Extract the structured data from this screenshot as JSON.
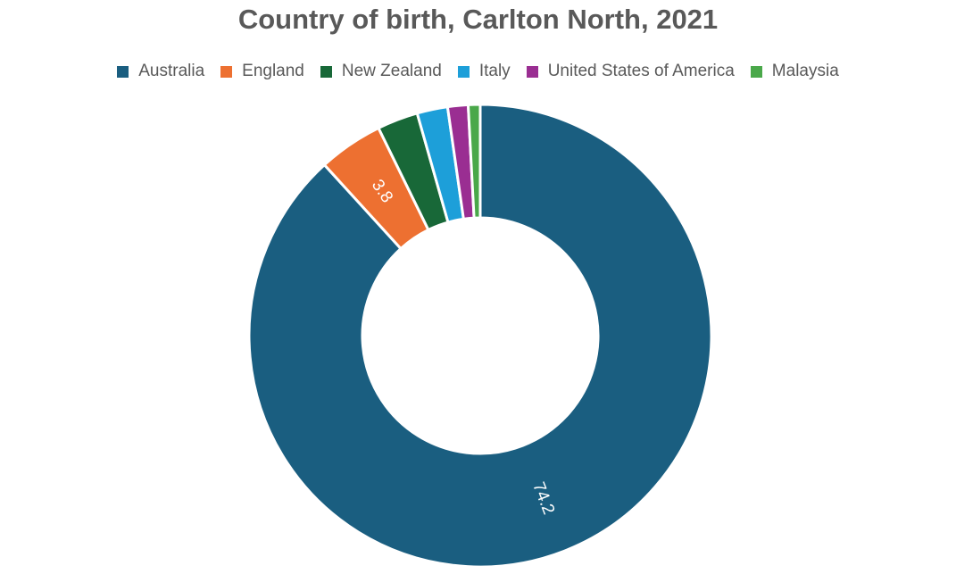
{
  "chart_data": {
    "type": "pie",
    "subtype": "donut",
    "title": "Country of birth, Carlton North, 2021",
    "legend_position": "top",
    "series": [
      {
        "name": "Australia",
        "value": 74.2,
        "label": "74.2",
        "color": "#1a5e80"
      },
      {
        "name": "England",
        "value": 3.8,
        "label": "3.8",
        "color": "#ed7031"
      },
      {
        "name": "New Zealand",
        "value": 2.4,
        "label": "",
        "color": "#186838"
      },
      {
        "name": "Italy",
        "value": 1.8,
        "label": "",
        "color": "#1d9fd9"
      },
      {
        "name": "United States of America",
        "value": 1.2,
        "label": "",
        "color": "#9a2e92"
      },
      {
        "name": "Malaysia",
        "value": 0.7,
        "label": "",
        "color": "#4aa84a"
      }
    ]
  }
}
